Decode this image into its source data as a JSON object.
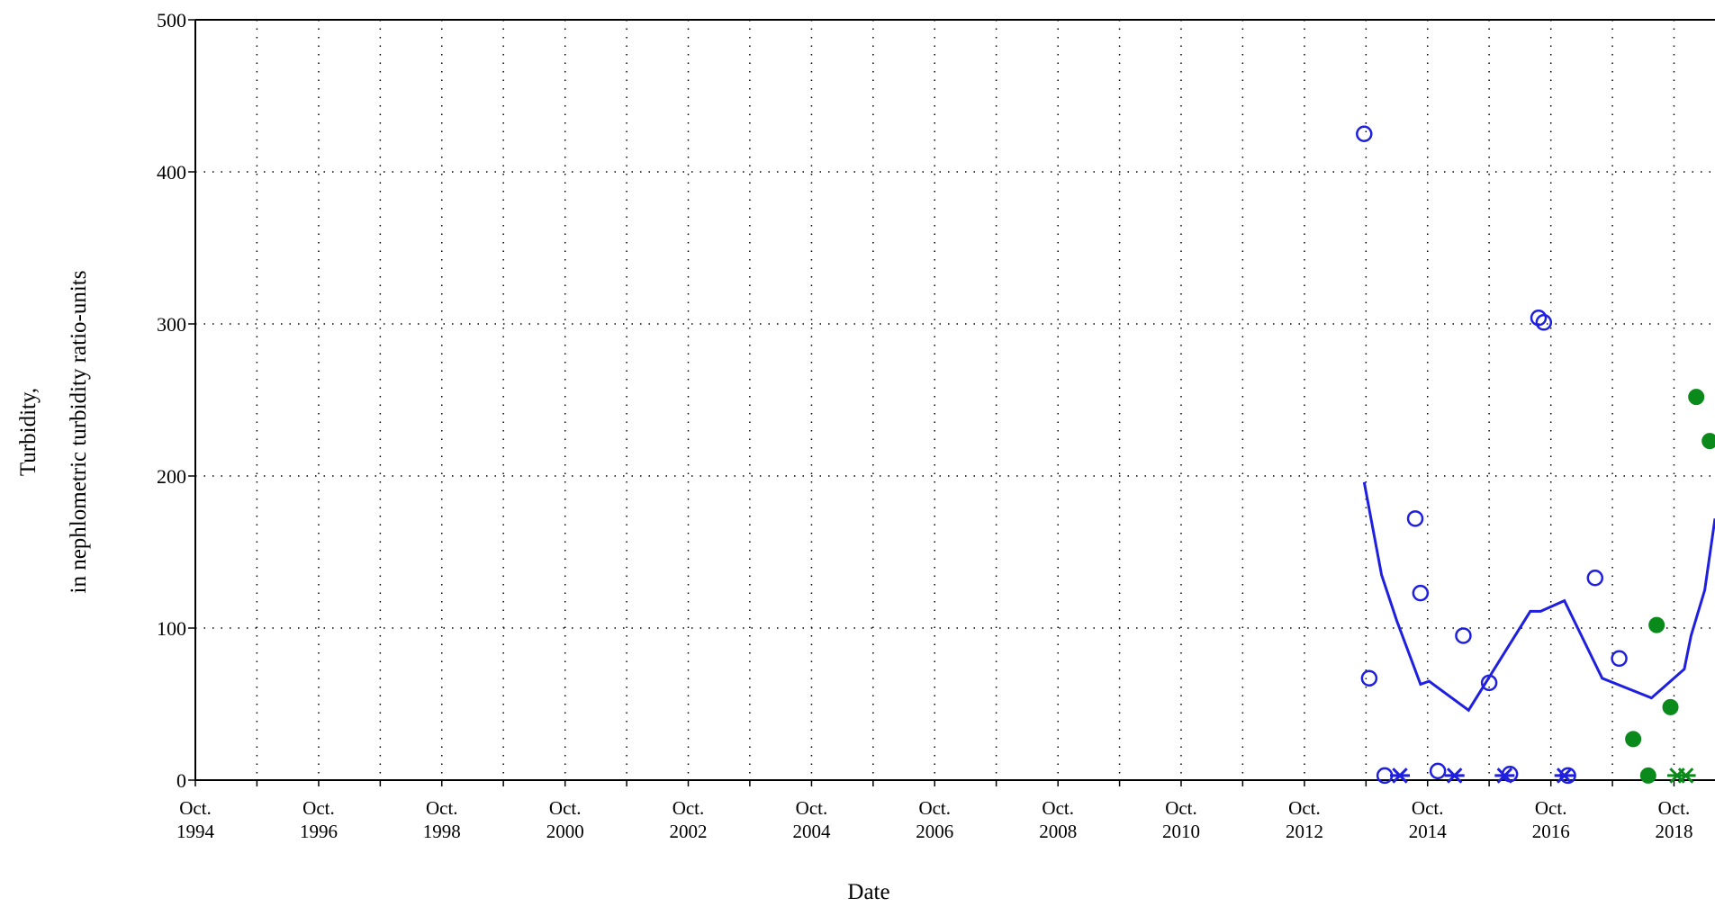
{
  "chart_data": {
    "type": "scatter",
    "xlabel": "Date",
    "ylabel_lines": [
      "Turbidity,",
      "in nephlometric turbidity ratio-units"
    ],
    "xlim": [
      "1994-10-01",
      "2019-06-01"
    ],
    "ylim": [
      0,
      500
    ],
    "yticks": [
      0,
      100,
      200,
      300,
      400,
      500
    ],
    "xticks": [
      {
        "date": "1994-10-01",
        "line1": "Oct.",
        "line2": "1994"
      },
      {
        "date": "1996-10-01",
        "line1": "Oct.",
        "line2": "1996"
      },
      {
        "date": "1998-10-01",
        "line1": "Oct.",
        "line2": "1998"
      },
      {
        "date": "2000-10-01",
        "line1": "Oct.",
        "line2": "2000"
      },
      {
        "date": "2002-10-01",
        "line1": "Oct.",
        "line2": "2002"
      },
      {
        "date": "2004-10-01",
        "line1": "Oct.",
        "line2": "2004"
      },
      {
        "date": "2006-10-01",
        "line1": "Oct.",
        "line2": "2006"
      },
      {
        "date": "2008-10-01",
        "line1": "Oct.",
        "line2": "2008"
      },
      {
        "date": "2010-10-01",
        "line1": "Oct.",
        "line2": "2010"
      },
      {
        "date": "2012-10-01",
        "line1": "Oct.",
        "line2": "2012"
      },
      {
        "date": "2014-10-01",
        "line1": "Oct.",
        "line2": "2014"
      },
      {
        "date": "2016-10-01",
        "line1": "Oct.",
        "line2": "2016"
      },
      {
        "date": "2018-10-01",
        "line1": "Oct.",
        "line2": "2018"
      }
    ],
    "grid": true,
    "colors": {
      "blue": "#1f1fe0",
      "green": "#0a8a1a"
    },
    "series": [
      {
        "marker": "open-circle",
        "color": "blue",
        "points": [
          {
            "x": "2013-09-20",
            "y": 425
          },
          {
            "x": "2013-10-20",
            "y": 67
          },
          {
            "x": "2014-01-20",
            "y": 3
          },
          {
            "x": "2014-07-20",
            "y": 172
          },
          {
            "x": "2014-08-20",
            "y": 123
          },
          {
            "x": "2014-12-01",
            "y": 6
          },
          {
            "x": "2015-05-01",
            "y": 95
          },
          {
            "x": "2015-10-01",
            "y": 64
          },
          {
            "x": "2016-02-01",
            "y": 4
          },
          {
            "x": "2016-07-20",
            "y": 304
          },
          {
            "x": "2016-08-20",
            "y": 301
          },
          {
            "x": "2017-01-10",
            "y": 3
          },
          {
            "x": "2017-06-20",
            "y": 133
          },
          {
            "x": "2017-11-10",
            "y": 80
          }
        ]
      },
      {
        "marker": "asterisk",
        "color": "blue",
        "points": [
          {
            "x": "2014-04-20",
            "y": 3
          },
          {
            "x": "2015-03-10",
            "y": 3
          },
          {
            "x": "2016-01-01",
            "y": 3
          },
          {
            "x": "2016-12-20",
            "y": 3
          }
        ]
      },
      {
        "marker": "filled-circle",
        "color": "green",
        "points": [
          {
            "x": "2018-02-01",
            "y": 27
          },
          {
            "x": "2018-05-01",
            "y": 3
          },
          {
            "x": "2018-06-20",
            "y": 102
          },
          {
            "x": "2018-09-10",
            "y": 48
          },
          {
            "x": "2019-02-10",
            "y": 252
          },
          {
            "x": "2019-05-01",
            "y": 223
          }
        ]
      },
      {
        "marker": "asterisk",
        "color": "green",
        "points": [
          {
            "x": "2018-10-20",
            "y": 3
          },
          {
            "x": "2018-12-10",
            "y": 3
          }
        ]
      },
      {
        "marker": "line",
        "color": "blue",
        "points": [
          {
            "x": "2013-09-20",
            "y": 196
          },
          {
            "x": "2014-01-01",
            "y": 135
          },
          {
            "x": "2014-04-01",
            "y": 105
          },
          {
            "x": "2014-08-20",
            "y": 63
          },
          {
            "x": "2014-10-10",
            "y": 65
          },
          {
            "x": "2015-06-01",
            "y": 46
          },
          {
            "x": "2016-06-01",
            "y": 111
          },
          {
            "x": "2016-08-01",
            "y": 111
          },
          {
            "x": "2016-12-20",
            "y": 118
          },
          {
            "x": "2017-08-01",
            "y": 67
          },
          {
            "x": "2018-05-20",
            "y": 54
          },
          {
            "x": "2018-12-01",
            "y": 73
          },
          {
            "x": "2019-01-10",
            "y": 95
          },
          {
            "x": "2019-04-01",
            "y": 125
          },
          {
            "x": "2019-06-01",
            "y": 172
          }
        ]
      }
    ]
  }
}
